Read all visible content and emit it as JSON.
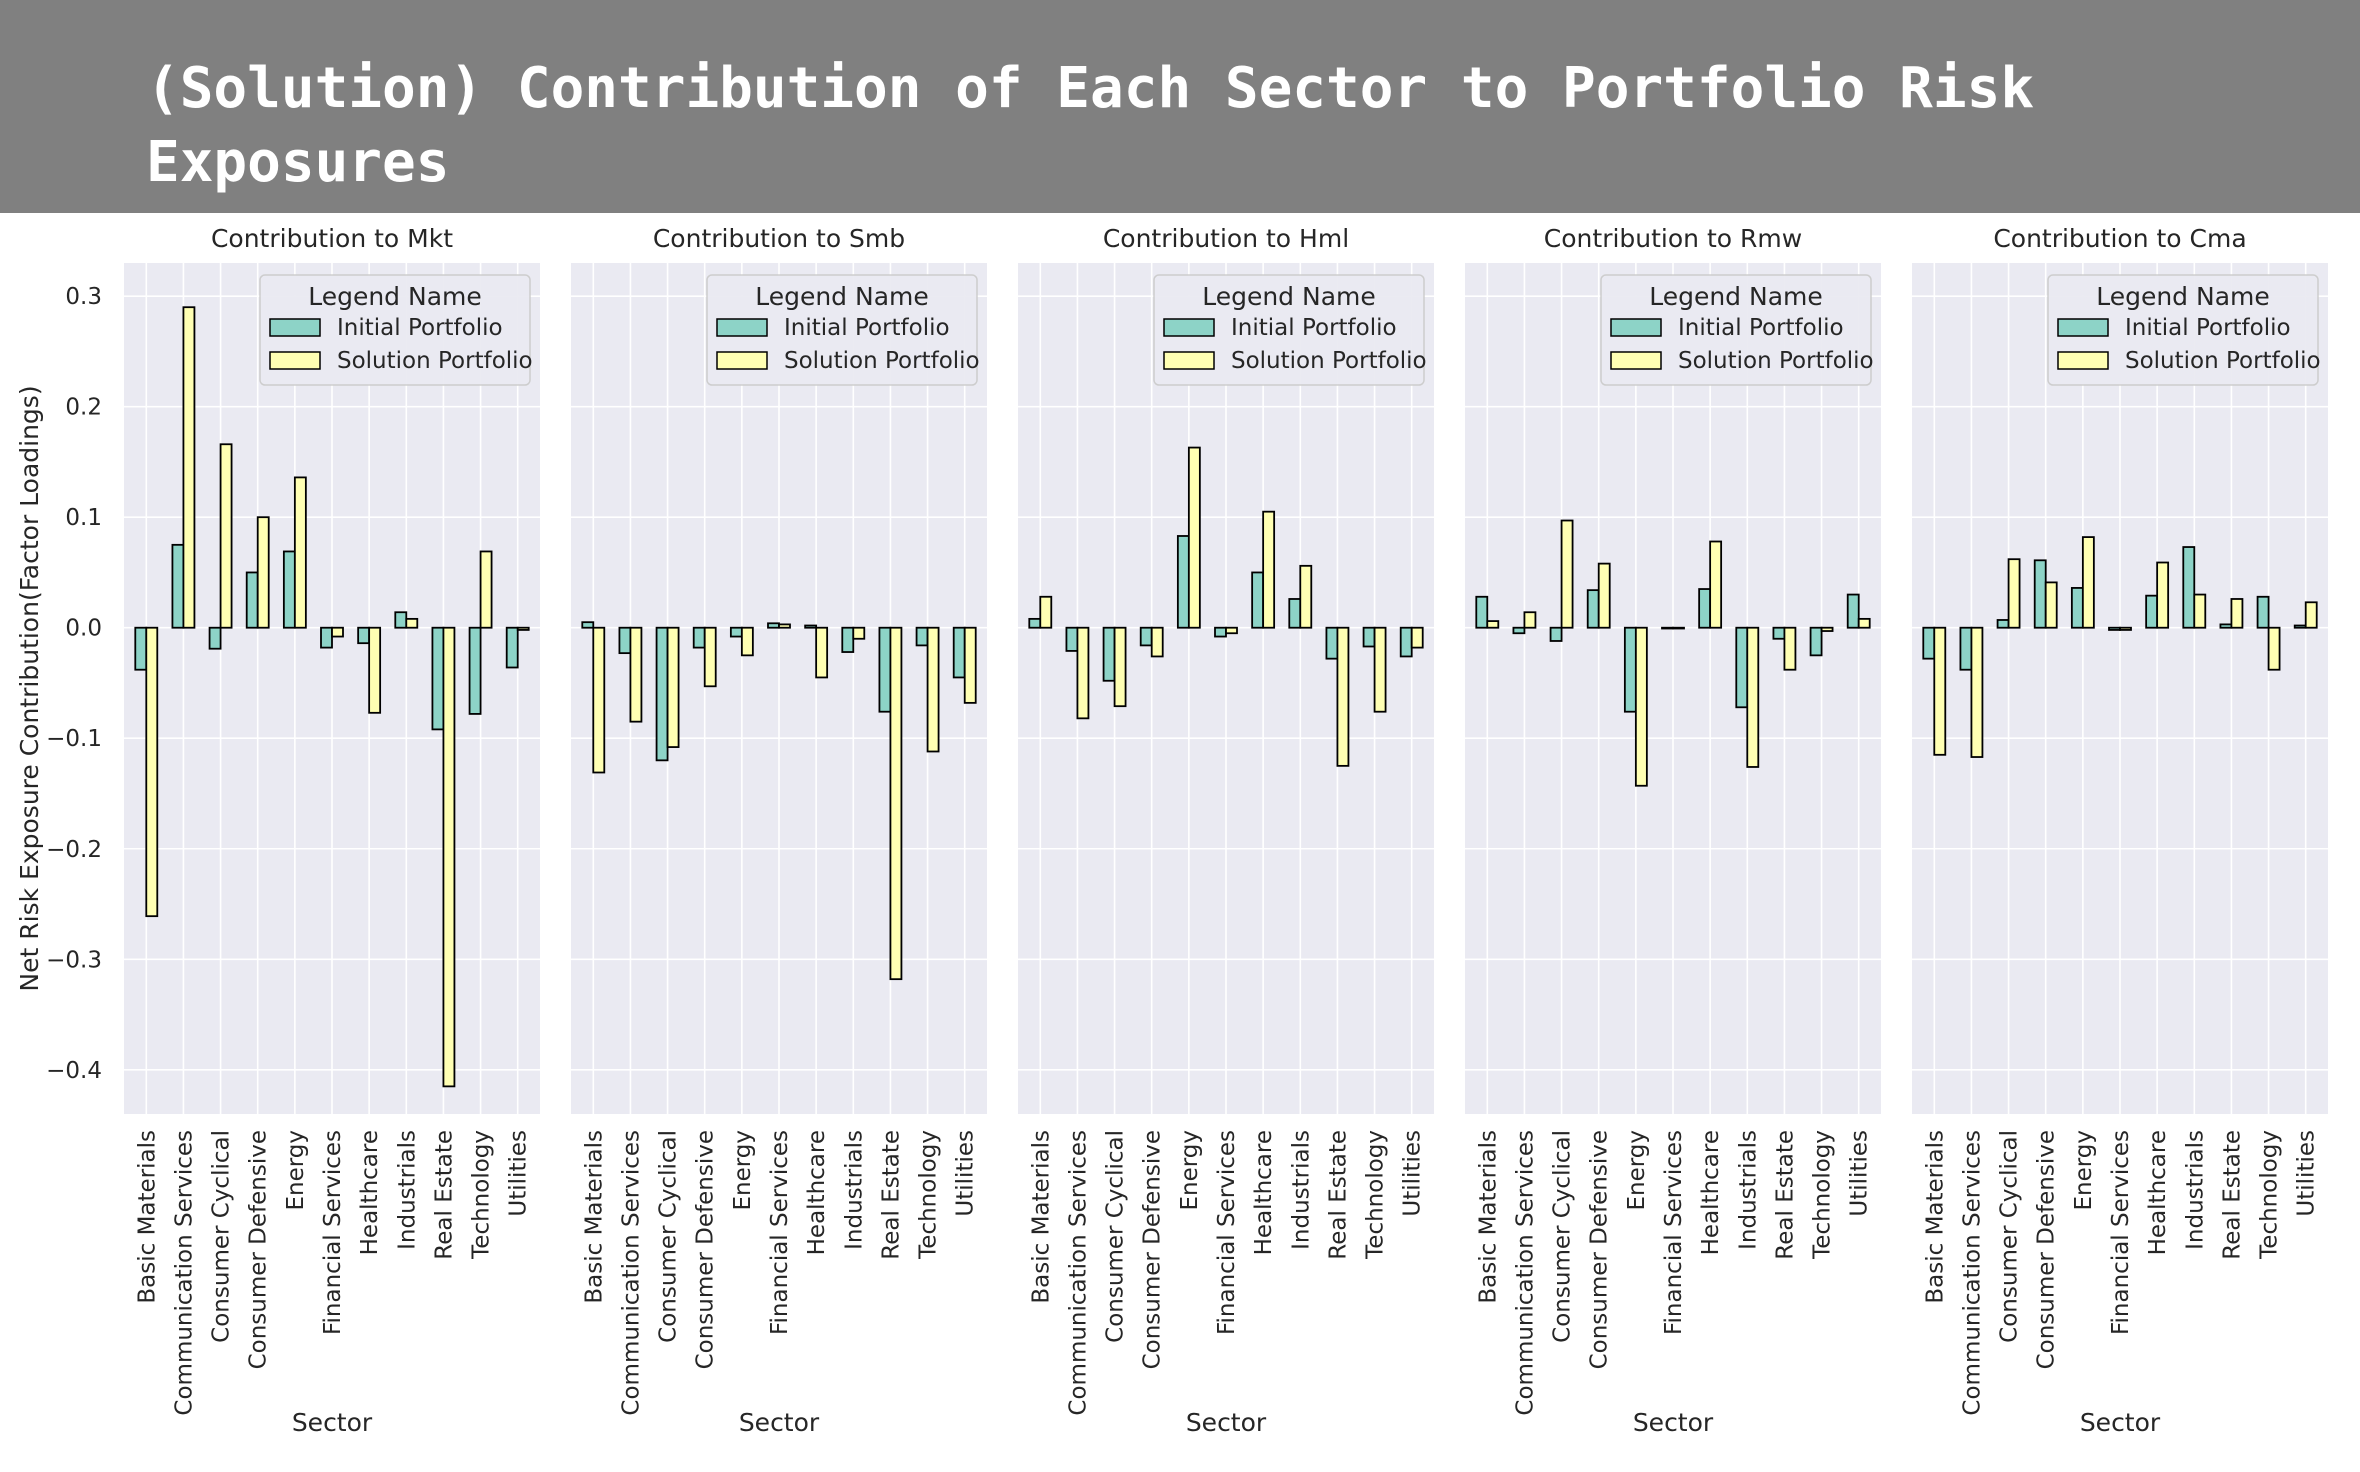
{
  "header": {
    "title": "(Solution) Contribution of Each Sector to Portfolio Risk Exposures"
  },
  "chart_data": {
    "type": "bar",
    "y_axis_label": "Net Risk Exposure Contribution(Factor Loadings)",
    "x_axis_label": "Sector",
    "ylim": [
      -0.44,
      0.33
    ],
    "y_ticks": [
      0.3,
      0.2,
      0.1,
      0.0,
      -0.1,
      -0.2,
      -0.3,
      -0.4
    ],
    "y_tick_labels": [
      "0.3",
      "0.2",
      "0.1",
      "0.0",
      "−0.1",
      "−0.2",
      "−0.3",
      "−0.4"
    ],
    "grid": true,
    "legend": {
      "title": "Legend Name",
      "position": "top-right",
      "entries": [
        "Initial Portfolio",
        "Solution Portfolio"
      ]
    },
    "colors": {
      "initial": "#8dd3c7",
      "solution": "#ffffb3",
      "edge": "#000000",
      "plot_bg": "#eaeaf2",
      "grid": "#ffffff"
    },
    "categories": [
      "Basic Materials",
      "Communication Services",
      "Consumer Cyclical",
      "Consumer Defensive",
      "Energy",
      "Financial Services",
      "Healthcare",
      "Industrials",
      "Real Estate",
      "Technology",
      "Utilities"
    ],
    "panels": [
      {
        "title": "Contribution to Mkt",
        "series": [
          {
            "name": "Initial Portfolio",
            "values": [
              -0.038,
              0.075,
              -0.019,
              0.05,
              0.069,
              -0.018,
              -0.014,
              0.014,
              -0.092,
              -0.078,
              -0.036
            ]
          },
          {
            "name": "Solution Portfolio",
            "values": [
              -0.261,
              0.29,
              0.166,
              0.1,
              0.136,
              -0.008,
              -0.077,
              0.008,
              -0.415,
              0.069,
              -0.002
            ]
          }
        ]
      },
      {
        "title": "Contribution to Smb",
        "series": [
          {
            "name": "Initial Portfolio",
            "values": [
              0.005,
              -0.023,
              -0.12,
              -0.018,
              -0.008,
              0.004,
              0.002,
              -0.022,
              -0.076,
              -0.016,
              -0.045
            ]
          },
          {
            "name": "Solution Portfolio",
            "values": [
              -0.131,
              -0.085,
              -0.108,
              -0.053,
              -0.025,
              0.003,
              -0.045,
              -0.01,
              -0.318,
              -0.112,
              -0.068
            ]
          }
        ]
      },
      {
        "title": "Contribution to Hml",
        "series": [
          {
            "name": "Initial Portfolio",
            "values": [
              0.008,
              -0.021,
              -0.048,
              -0.016,
              0.083,
              -0.008,
              0.05,
              0.026,
              -0.028,
              -0.017,
              -0.026
            ]
          },
          {
            "name": "Solution Portfolio",
            "values": [
              0.028,
              -0.082,
              -0.071,
              -0.026,
              0.163,
              -0.005,
              0.105,
              0.056,
              -0.125,
              -0.076,
              -0.018
            ]
          }
        ]
      },
      {
        "title": "Contribution to Rmw",
        "series": [
          {
            "name": "Initial Portfolio",
            "values": [
              0.028,
              -0.005,
              -0.012,
              0.034,
              -0.076,
              0.0,
              0.035,
              -0.072,
              -0.01,
              -0.025,
              0.03
            ]
          },
          {
            "name": "Solution Portfolio",
            "values": [
              0.006,
              0.014,
              0.097,
              0.058,
              -0.143,
              0.0,
              0.078,
              -0.126,
              -0.038,
              -0.003,
              0.008
            ]
          }
        ]
      },
      {
        "title": "Contribution to Cma",
        "series": [
          {
            "name": "Initial Portfolio",
            "values": [
              -0.028,
              -0.038,
              0.007,
              0.061,
              0.036,
              -0.002,
              0.029,
              0.073,
              0.003,
              0.028,
              0.002
            ]
          },
          {
            "name": "Solution Portfolio",
            "values": [
              -0.115,
              -0.117,
              0.062,
              0.041,
              0.082,
              -0.002,
              0.059,
              0.03,
              0.026,
              -0.038,
              0.023
            ]
          }
        ]
      }
    ]
  }
}
